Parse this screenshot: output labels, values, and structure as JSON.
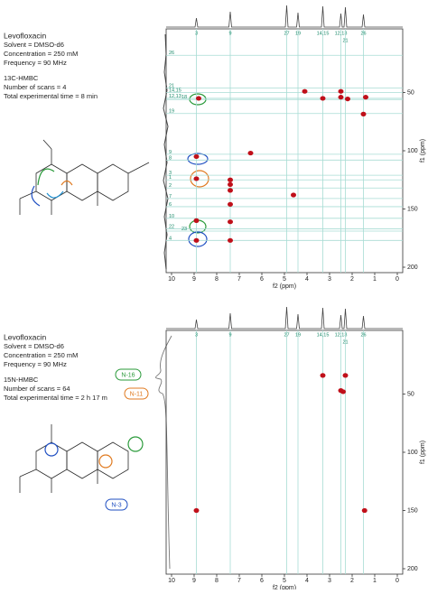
{
  "chart_data": [
    {
      "type": "scatter",
      "title": "Levofloxacin",
      "info": [
        "Solvent = DMSO-d6",
        "Concentration = 250 mM",
        "Frequency = 90 MHz"
      ],
      "experiment": "13C-HMBC",
      "acquisition": [
        "Number of scans = 4",
        "Total experimental time = 8 min"
      ],
      "x_label": "f2 (ppm)",
      "y_label": "f1 (ppm)",
      "xlim": [
        10,
        0
      ],
      "xticks": [
        10,
        9,
        8,
        7,
        6,
        5,
        4,
        3,
        2,
        1,
        0
      ],
      "ylim": [
        200,
        0
      ],
      "yticks": [
        50,
        100,
        150,
        200
      ],
      "vertical_lines": {
        "labels": [
          "3",
          "9",
          "27",
          "19",
          "14,15",
          "12,13",
          "21",
          "26"
        ],
        "x": [
          8.9,
          7.4,
          4.9,
          4.4,
          3.3,
          2.5,
          2.3,
          1.5
        ]
      },
      "horizontal_lines": {
        "labels": [
          "26",
          "21",
          "14,15",
          "12,13",
          "18",
          "19",
          "9",
          "8",
          "3",
          "1",
          "2",
          "7",
          "6",
          "10",
          "22",
          "23",
          "4"
        ],
        "y": [
          18,
          46,
          50,
          55,
          56,
          68,
          103,
          108,
          121,
          125,
          132,
          141,
          148,
          158,
          167,
          169,
          177
        ]
      },
      "color": "#c0101a",
      "x": [
        4.1,
        2.5,
        1.4,
        2.5,
        3.3,
        2.2,
        8.8,
        1.5,
        8.9,
        6.5,
        8.9,
        7.4,
        7.4,
        7.4,
        4.6,
        7.4,
        8.9,
        7.4,
        8.9,
        7.4
      ],
      "values": [
        49,
        49,
        54,
        54,
        55,
        55.5,
        55,
        68.5,
        105,
        102,
        124,
        125,
        129,
        134,
        138,
        146,
        160,
        161,
        177,
        177
      ]
    },
    {
      "type": "scatter",
      "title": "Levofloxacin",
      "info": [
        "Solvent = DMSO-d6",
        "Concentration = 250 mM",
        "Frequency = 90 MHz"
      ],
      "experiment": "15N-HMBC",
      "acquisition": [
        "Number of scans = 64",
        "Total experimental time = 2 h 17 m"
      ],
      "callouts": [
        "N-16",
        "N-11",
        "N-3"
      ],
      "x_label": "f2 (ppm)",
      "y_label": "f1 (ppm)",
      "xlim": [
        10,
        0
      ],
      "xticks": [
        10,
        9,
        8,
        7,
        6,
        5,
        4,
        3,
        2,
        1,
        0
      ],
      "ylim": [
        200,
        0
      ],
      "yticks": [
        50,
        100,
        150,
        200
      ],
      "vertical_lines": {
        "labels": [
          "3",
          "9",
          "27",
          "19",
          "14,15",
          "12,13",
          "21",
          "26"
        ],
        "x": [
          8.9,
          7.4,
          4.9,
          4.4,
          3.3,
          2.5,
          2.3,
          1.5
        ]
      },
      "color": "#c0101a",
      "x": [
        3.3,
        2.3,
        2.5,
        2.4,
        8.9,
        1.45
      ],
      "values": [
        34,
        34,
        47,
        48,
        150,
        150
      ]
    }
  ]
}
